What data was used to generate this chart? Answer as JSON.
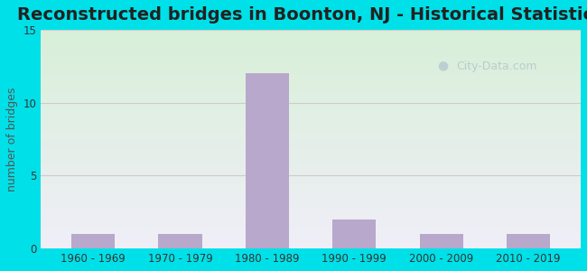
{
  "title": "Reconstructed bridges in Boonton, NJ - Historical Statistics",
  "categories": [
    "1960 - 1969",
    "1970 - 1979",
    "1980 - 1989",
    "1990 - 1999",
    "2000 - 2009",
    "2010 - 2019"
  ],
  "values": [
    1,
    1,
    12,
    2,
    1,
    1
  ],
  "bar_color": "#b8a8cc",
  "ylim": [
    0,
    15
  ],
  "yticks": [
    0,
    5,
    10,
    15
  ],
  "ylabel": "number of bridges",
  "background_outer": "#00e0e8",
  "background_top": "#d8f0d8",
  "background_bottom": "#f0eef8",
  "grid_color": "#cccccc",
  "title_fontsize": 14,
  "axis_label_fontsize": 9,
  "tick_fontsize": 8.5,
  "watermark_text": "City-Data.com",
  "watermark_color": "#b0c4cc"
}
